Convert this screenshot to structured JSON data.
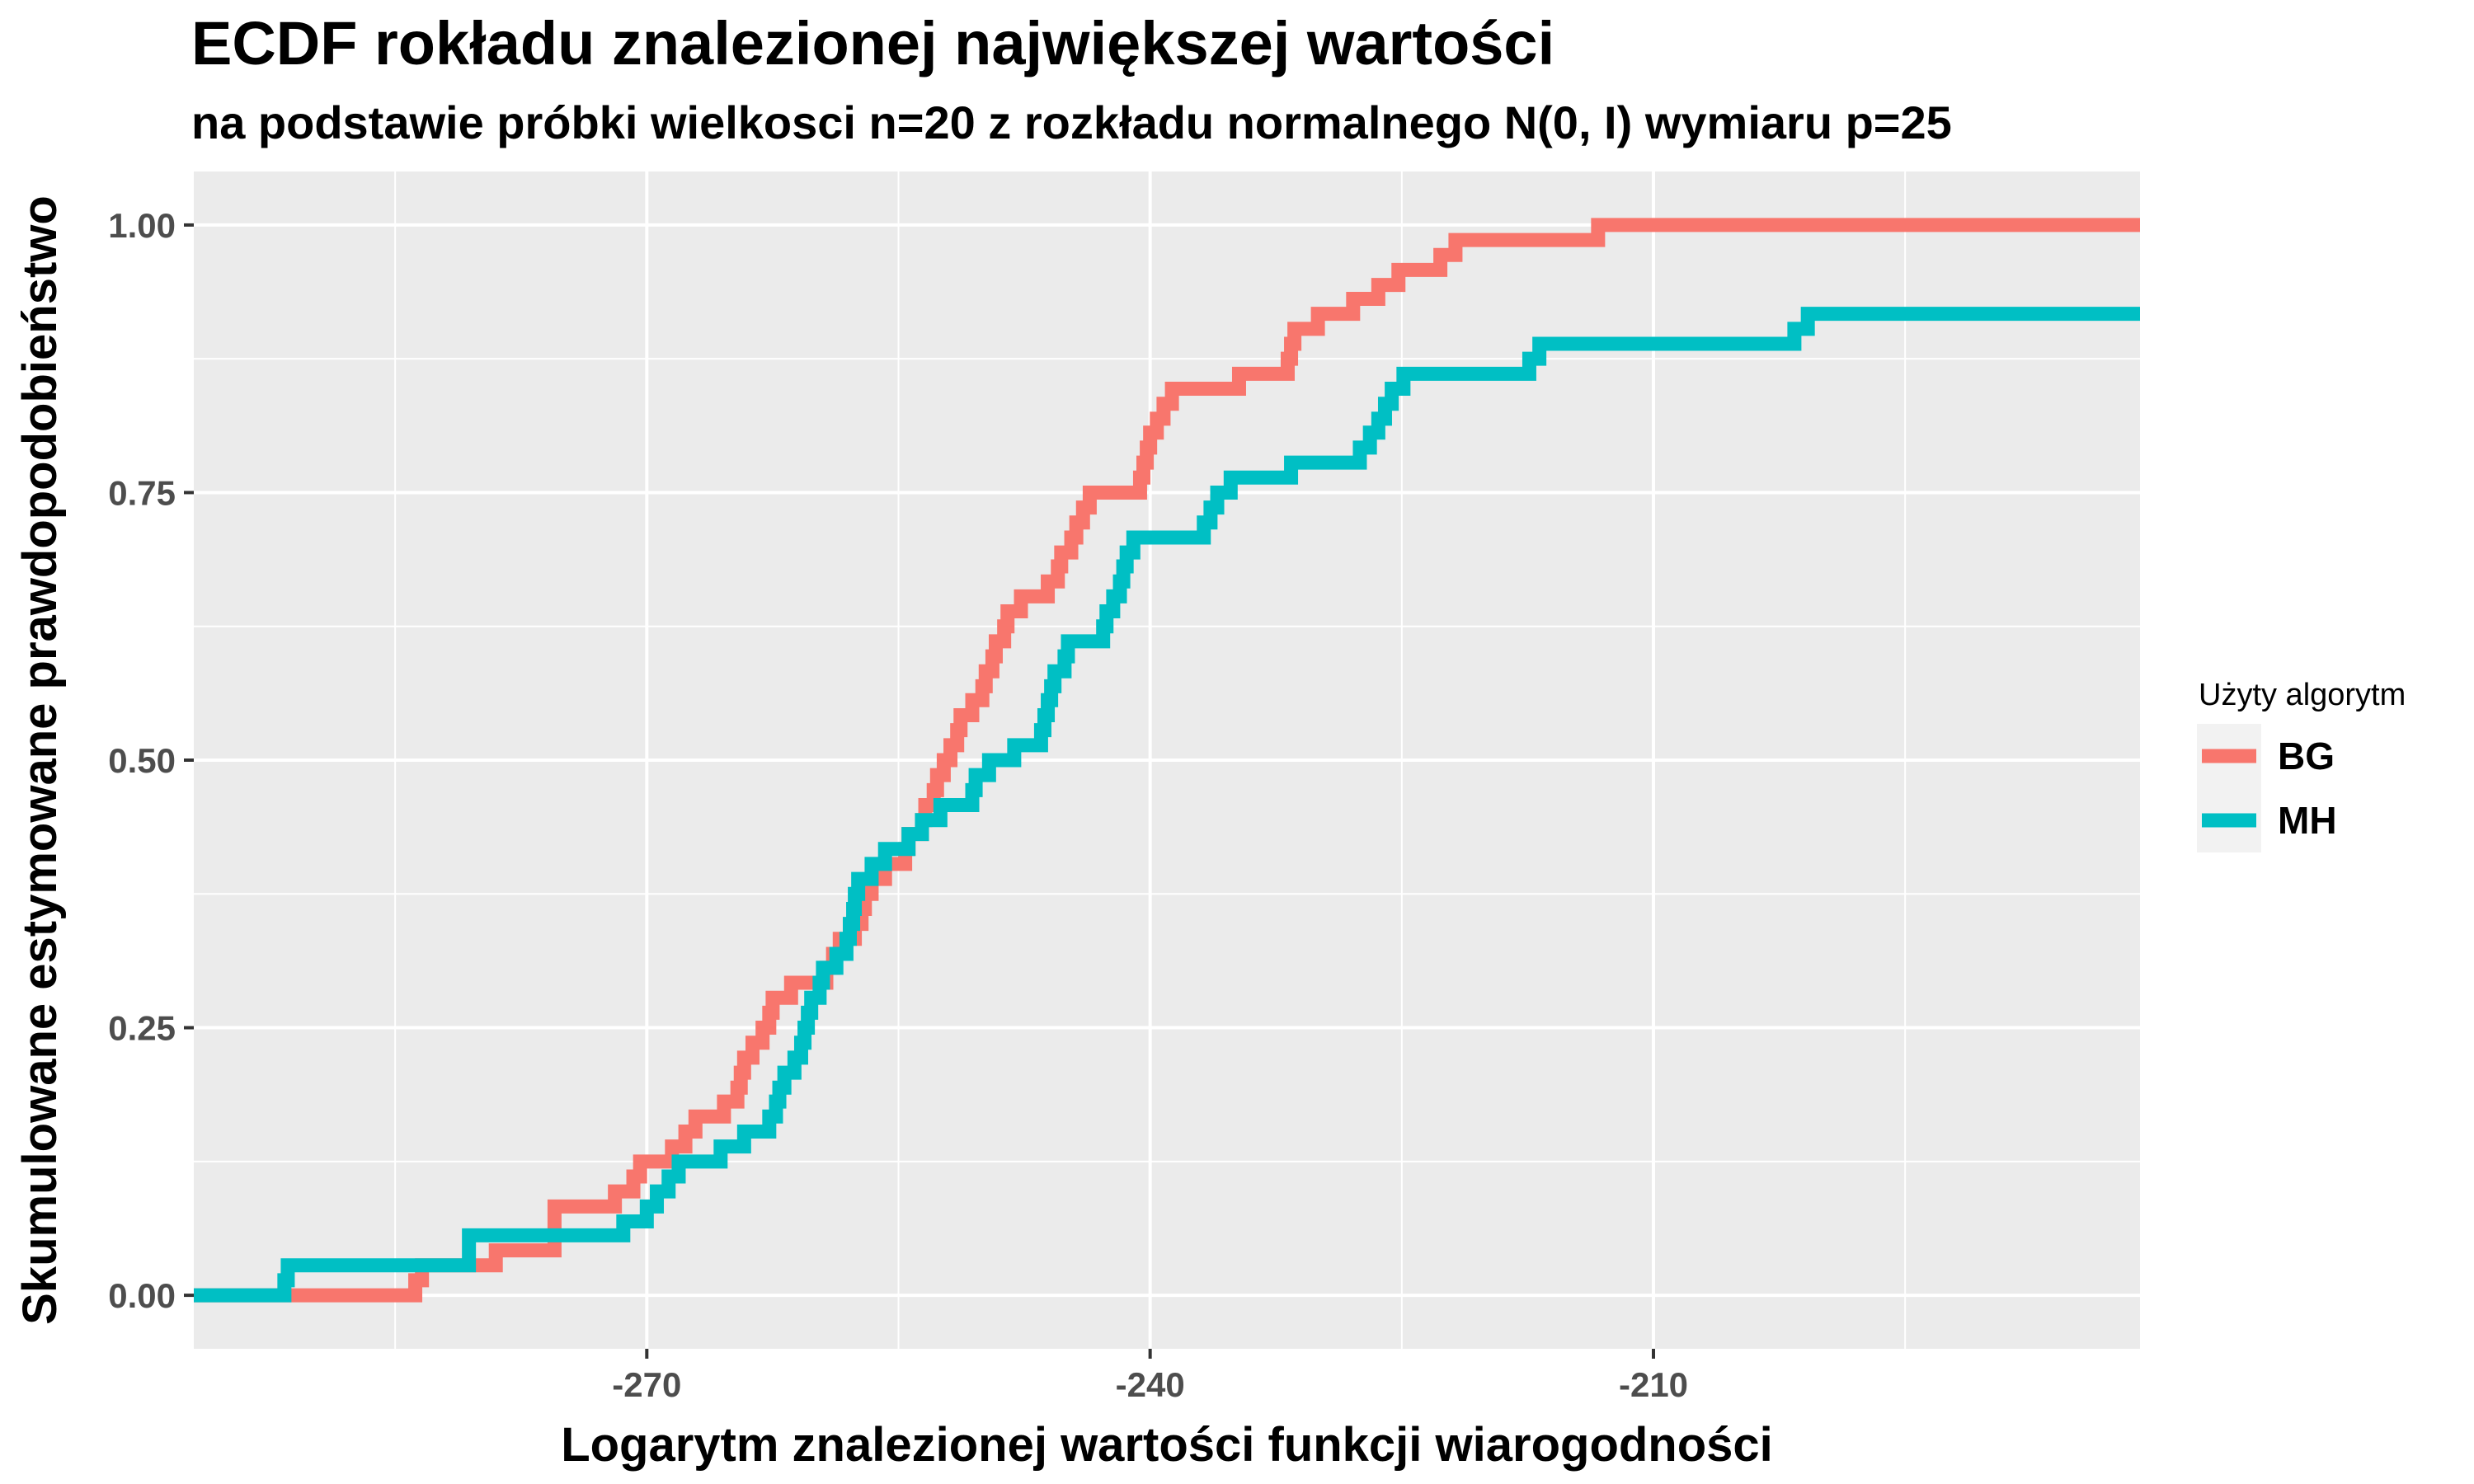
{
  "chart_data": {
    "type": "line",
    "step": true,
    "title": "ECDF rokładu znalezionej największej wartości",
    "subtitle": "na podstawie próbki wielkosci n=20 z rozkładu normalnego N(0, I) wymiaru p=25",
    "xlabel": "Logarytm znalezionej wartości funkcji wiarogodności",
    "ylabel": "Skumulowane estymowane prawdopodobieństwo",
    "xlim": [
      -297,
      -181
    ],
    "ylim": [
      -0.05,
      1.05
    ],
    "x_ticks": [
      -270,
      -240,
      -210
    ],
    "x_tick_labels": [
      "-270",
      "-240",
      "-210"
    ],
    "y_ticks": [
      0,
      0.25,
      0.5,
      0.75,
      1
    ],
    "y_tick_labels": [
      "0.00",
      "0.25",
      "0.50",
      "0.75",
      "1.00"
    ],
    "grid": true,
    "legend": {
      "title": "Użyty algorytm",
      "position": "right"
    },
    "series": [
      {
        "name": "BG",
        "color": "#F8766D",
        "x": [
          -283.8,
          -283.4,
          -279.0,
          -275.5,
          -271.9,
          -270.8,
          -270.4,
          -268.5,
          -267.7,
          -267.1,
          -265.4,
          -264.6,
          -264.4,
          -264.2,
          -263.7,
          -263.1,
          -262.7,
          -262.5,
          -261.4,
          -259.3,
          -258.9,
          -258.5,
          -257.6,
          -257.2,
          -257.0,
          -256.6,
          -255.8,
          -254.6,
          -254.4,
          -253.6,
          -253.4,
          -252.9,
          -252.7,
          -252.3,
          -251.9,
          -251.5,
          -251.3,
          -250.6,
          -250.0,
          -249.8,
          -249.4,
          -249.2,
          -248.7,
          -248.5,
          -247.7,
          -246.1,
          -245.5,
          -245.3,
          -244.7,
          -244.4,
          -244.0,
          -243.6,
          -240.6,
          -240.4,
          -240.2,
          -240.0,
          -239.6,
          -239.2,
          -238.7,
          -234.7,
          -231.8,
          -231.6,
          -231.4,
          -230.0,
          -227.9,
          -226.4,
          -225.2,
          -222.7,
          -221.8,
          -213.3,
          -204.6,
          -194.4,
          -193.8
        ],
        "y": [
          0.014,
          0.028,
          0.042,
          0.083,
          0.097,
          0.111,
          0.125,
          0.139,
          0.153,
          0.167,
          0.181,
          0.194,
          0.208,
          0.222,
          0.236,
          0.25,
          0.264,
          0.278,
          0.292,
          0.306,
          0.319,
          0.333,
          0.347,
          0.361,
          0.375,
          0.389,
          0.403,
          0.417,
          0.431,
          0.444,
          0.458,
          0.472,
          0.486,
          0.5,
          0.514,
          0.528,
          0.542,
          0.556,
          0.569,
          0.583,
          0.597,
          0.611,
          0.625,
          0.639,
          0.653,
          0.667,
          0.681,
          0.694,
          0.708,
          0.722,
          0.736,
          0.75,
          0.764,
          0.778,
          0.792,
          0.806,
          0.819,
          0.833,
          0.847,
          0.861,
          0.875,
          0.889,
          0.903,
          0.917,
          0.931,
          0.944,
          0.958,
          0.972,
          0.986,
          1.0,
          1.0,
          1.0,
          1.0
        ]
      },
      {
        "name": "MH",
        "color": "#00BFC4",
        "x": [
          -291.6,
          -291.4,
          -280.6,
          -271.4,
          -270.0,
          -269.4,
          -268.7,
          -268.1,
          -265.6,
          -264.2,
          -262.7,
          -262.3,
          -262.1,
          -261.8,
          -261.2,
          -260.8,
          -260.6,
          -260.4,
          -260.2,
          -259.7,
          -259.5,
          -258.7,
          -258.1,
          -257.9,
          -257.7,
          -257.6,
          -257.4,
          -256.6,
          -255.8,
          -254.4,
          -253.6,
          -252.5,
          -250.6,
          -250.4,
          -249.6,
          -248.1,
          -246.5,
          -246.3,
          -246.1,
          -245.9,
          -245.7,
          -245.1,
          -244.9,
          -242.8,
          -242.6,
          -242.2,
          -241.8,
          -241.6,
          -241.4,
          -241.0,
          -236.8,
          -236.4,
          -236.0,
          -235.2,
          -231.6,
          -227.5,
          -226.9,
          -226.4,
          -226.0,
          -225.6,
          -224.9,
          -217.4,
          -216.8,
          -201.6,
          -200.8
        ],
        "y": [
          0.014,
          0.028,
          0.056,
          0.069,
          0.083,
          0.097,
          0.111,
          0.125,
          0.139,
          0.153,
          0.167,
          0.181,
          0.194,
          0.208,
          0.222,
          0.236,
          0.25,
          0.264,
          0.278,
          0.292,
          0.306,
          0.319,
          0.333,
          0.347,
          0.361,
          0.375,
          0.389,
          0.403,
          0.417,
          0.431,
          0.444,
          0.458,
          0.472,
          0.486,
          0.5,
          0.514,
          0.528,
          0.542,
          0.556,
          0.569,
          0.583,
          0.597,
          0.611,
          0.625,
          0.639,
          0.653,
          0.667,
          0.681,
          0.694,
          0.708,
          0.722,
          0.736,
          0.75,
          0.764,
          0.778,
          0.792,
          0.806,
          0.819,
          0.833,
          0.847,
          0.861,
          0.875,
          0.889,
          0.903,
          0.917
        ]
      }
    ]
  }
}
